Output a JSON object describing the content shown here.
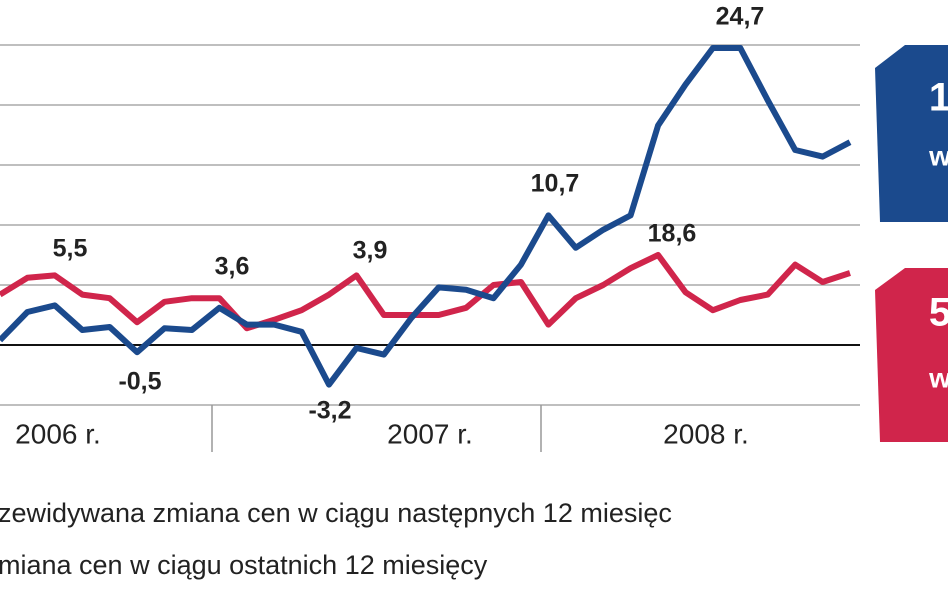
{
  "chart_data": {
    "type": "line",
    "categories": [
      null,
      null,
      null,
      null,
      null,
      null,
      null,
      null,
      null,
      null,
      null,
      null,
      null,
      null,
      null,
      null,
      null,
      null,
      null,
      null,
      null,
      null,
      null,
      null,
      null,
      null,
      null,
      null,
      null,
      null,
      null,
      null
    ],
    "series": [
      {
        "name": "zewidywana zmiana cen w ciągu następnych 12 miesięc",
        "color": "#1b4a8d",
        "values": [
          0.4,
          2.75,
          3.3,
          1.25,
          1.5,
          -0.6,
          1.4,
          1.25,
          3.1,
          1.7,
          1.7,
          1.1,
          -3.3,
          -0.25,
          -0.8,
          2.25,
          4.8,
          4.6,
          3.9,
          6.7,
          10.8,
          8.1,
          9.6,
          10.8,
          18.3,
          21.7,
          24.75,
          24.75,
          20.4,
          16.25,
          15.7,
          16.9
        ]
      },
      {
        "name": "miana cen w ciągu ostatnich 12 miesięcy",
        "color": "#d0254b",
        "values": [
          4.2,
          5.6,
          5.8,
          4.2,
          3.9,
          1.9,
          3.6,
          3.9,
          3.9,
          1.4,
          2.1,
          2.9,
          4.2,
          5.8,
          2.5,
          2.5,
          2.5,
          3.1,
          5.0,
          5.25,
          1.7,
          3.9,
          5.0,
          6.4,
          7.5,
          4.4,
          2.9,
          3.75,
          4.2,
          6.7,
          5.25,
          6.0
        ]
      }
    ],
    "ylim": [
      -5,
      25
    ],
    "yticks": [
      -5,
      0,
      5,
      10,
      15,
      20,
      25
    ],
    "grid": true,
    "year_labels": [
      "2006 r.",
      "2007 r.",
      "2008 r."
    ],
    "annotations": [
      "5,5",
      "3,6",
      "3,9",
      "-0,5",
      "-3,2",
      "10,7",
      "18,6",
      "24,7"
    ],
    "side_labels": [
      {
        "big": "1",
        "small": "w"
      },
      {
        "big": "5",
        "small": "w"
      }
    ]
  }
}
